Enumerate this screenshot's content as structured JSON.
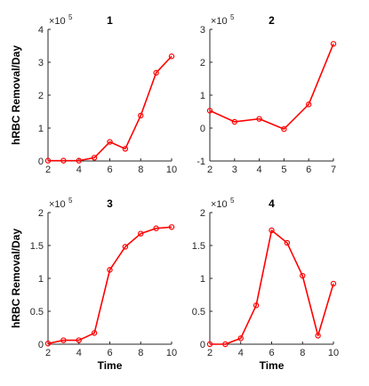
{
  "chart_data": [
    {
      "type": "line",
      "title": "1",
      "xlabel": "",
      "ylabel": "hRBC Removal/Day",
      "xlim": [
        2,
        10
      ],
      "ylim": [
        0,
        4
      ],
      "xticks": [
        2,
        4,
        6,
        8,
        10
      ],
      "yticks": [
        0,
        1,
        2,
        3,
        4
      ],
      "exponent_prefix": "×10",
      "exponent": "5",
      "color": "#ff0000",
      "x": [
        2,
        3,
        4,
        5,
        6,
        7,
        8,
        9,
        10
      ],
      "y": [
        0.01,
        0.01,
        0.01,
        0.1,
        0.58,
        0.37,
        1.38,
        2.68,
        3.18
      ]
    },
    {
      "type": "line",
      "title": "2",
      "xlabel": "",
      "ylabel": "",
      "xlim": [
        2,
        7
      ],
      "ylim": [
        -1,
        3
      ],
      "xticks": [
        2,
        3,
        4,
        5,
        6,
        7
      ],
      "yticks": [
        -1,
        0,
        1,
        2,
        3
      ],
      "exponent_prefix": "×10",
      "exponent": "5",
      "color": "#ff0000",
      "x": [
        2,
        3,
        4,
        5,
        6,
        7
      ],
      "y": [
        0.53,
        0.19,
        0.28,
        -0.03,
        0.72,
        2.56
      ]
    },
    {
      "type": "line",
      "title": "3",
      "xlabel": "Time",
      "ylabel": "hRBC Removal/Day",
      "xlim": [
        2,
        10
      ],
      "ylim": [
        0,
        2
      ],
      "xticks": [
        2,
        4,
        6,
        8,
        10
      ],
      "yticks": [
        0,
        0.5,
        1,
        1.5,
        2
      ],
      "exponent_prefix": "×10",
      "exponent": "5",
      "color": "#ff0000",
      "x": [
        2,
        3,
        4,
        5,
        6,
        7,
        8,
        9,
        10
      ],
      "y": [
        0.01,
        0.06,
        0.06,
        0.17,
        1.13,
        1.48,
        1.68,
        1.76,
        1.78
      ]
    },
    {
      "type": "line",
      "title": "4",
      "xlabel": "Time",
      "ylabel": "",
      "xlim": [
        2,
        10
      ],
      "ylim": [
        0,
        2
      ],
      "xticks": [
        2,
        4,
        6,
        8,
        10
      ],
      "yticks": [
        0,
        0.5,
        1,
        1.5,
        2
      ],
      "exponent_prefix": "×10",
      "exponent": "5",
      "color": "#ff0000",
      "x": [
        2,
        3,
        4,
        5,
        6,
        7,
        8,
        9,
        10
      ],
      "y": [
        0.0,
        0.0,
        0.09,
        0.59,
        1.73,
        1.54,
        1.04,
        0.13,
        0.92
      ]
    }
  ]
}
